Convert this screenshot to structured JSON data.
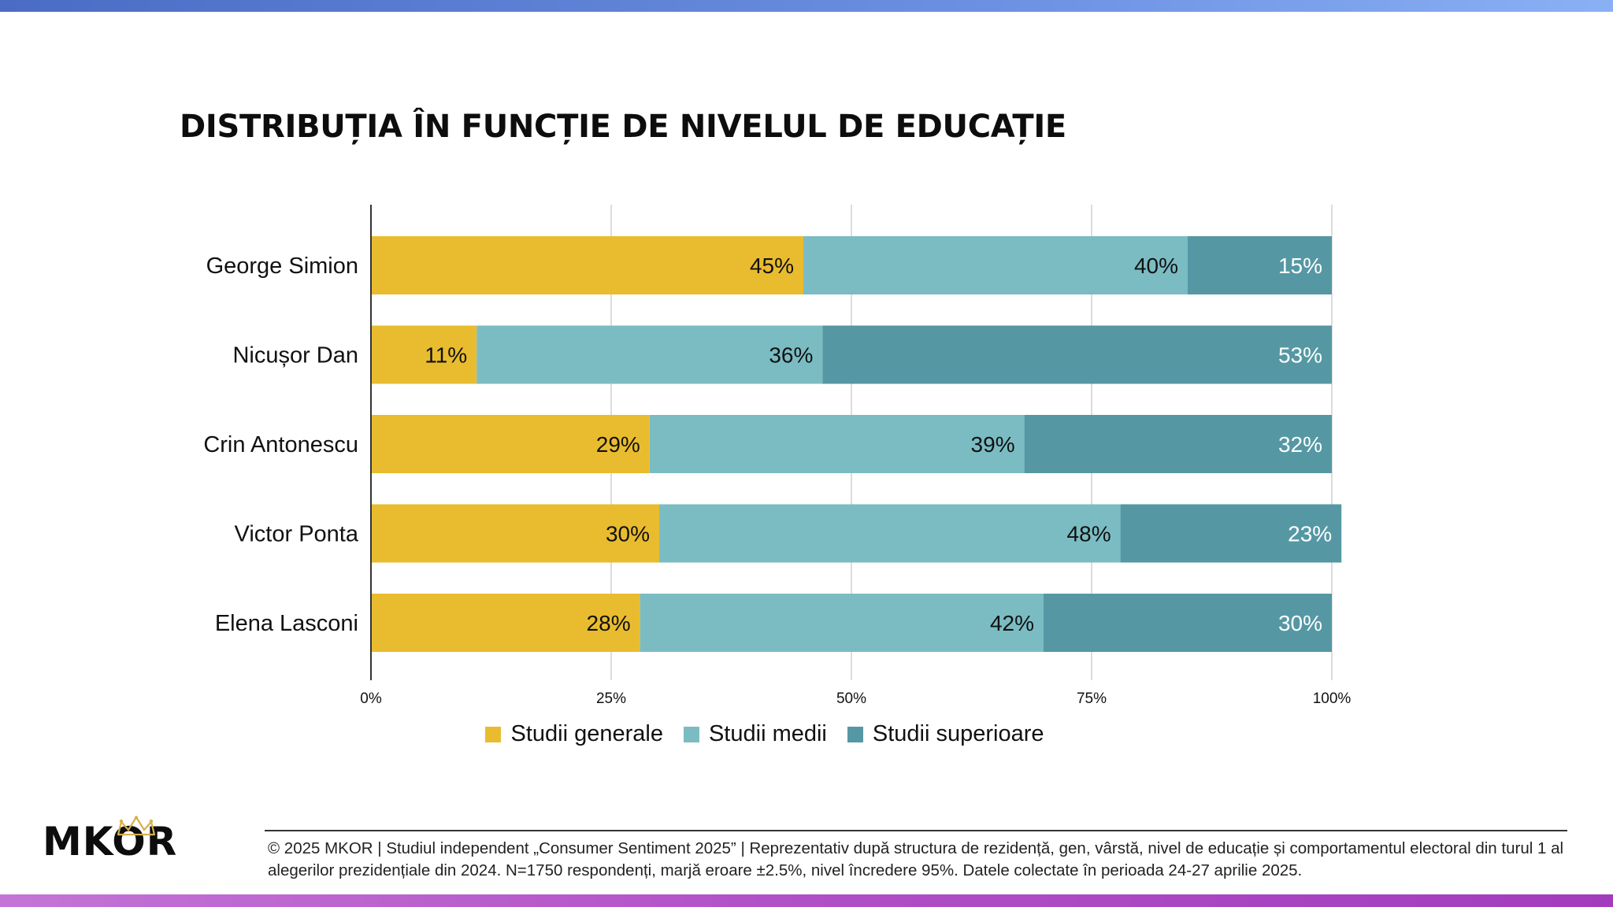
{
  "title": "DISTRIBUȚIA ÎN FUNCȚIE DE NIVELUL DE EDUCAȚIE",
  "colors": {
    "studii_generale": "#E9BC2F",
    "studii_medii": "#7BBCC3",
    "studii_superioare": "#5598A4"
  },
  "chart_data": {
    "type": "bar",
    "orientation": "horizontal",
    "stacked": true,
    "categories": [
      "George Simion",
      "Nicușor Dan",
      "Crin Antonescu",
      "Victor Ponta",
      "Elena Lasconi"
    ],
    "series": [
      {
        "name": "Studii generale",
        "values": [
          45,
          11,
          29,
          30,
          28
        ],
        "labels": [
          "45%",
          "11%",
          "29%",
          "30%",
          "28%"
        ],
        "color": "#E9BC2F",
        "label_color": "#111111"
      },
      {
        "name": "Studii medii",
        "values": [
          40,
          36,
          39,
          48,
          42
        ],
        "labels": [
          "40%",
          "36%",
          "39%",
          "48%",
          "42%"
        ],
        "color": "#7BBCC3",
        "label_color": "#111111"
      },
      {
        "name": "Studii superioare",
        "values": [
          15,
          53,
          32,
          23,
          30
        ],
        "labels": [
          "15%",
          "53%",
          "32%",
          "23%",
          "30%"
        ],
        "color": "#5598A4",
        "label_color": "#ffffff"
      }
    ],
    "xlim": [
      0,
      100
    ],
    "xticks": [
      0,
      25,
      50,
      75,
      100
    ],
    "xtick_labels": [
      "0%",
      "25%",
      "50%",
      "75%",
      "100%"
    ],
    "grid": true,
    "legend": "bottom"
  },
  "logo": {
    "text": "MKOR"
  },
  "footer": {
    "text": "© 2025 MKOR | Studiul independent „Consumer Sentiment 2025” | Reprezentativ după structura de rezidență, gen, vârstă, nivel de educație și comportamentul electoral din turul 1 al alegerilor prezidențiale din 2024. N=1750 respondenți, marjă eroare ±2.5%, nivel încredere 95%. Datele colectate în perioada 24-27 aprilie 2025."
  }
}
